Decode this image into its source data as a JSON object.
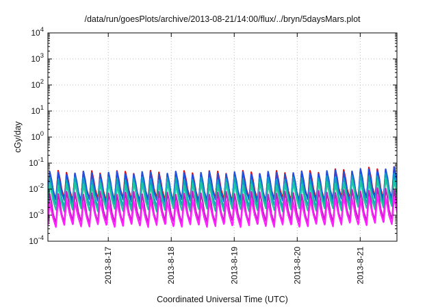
{
  "chart_data": {
    "type": "line",
    "title": "/data/run/goesPlots/archive/2013-08-21/14:00/flux/../bryn/5daysMars.plot",
    "xlabel": "Coordinated Universal Time (UTC)",
    "ylabel": "cGy/day",
    "yscale": "log",
    "ylim_exponents": [
      -4,
      4
    ],
    "y_tick_labels": [
      {
        "base": "10",
        "exp": "4"
      },
      {
        "base": "10",
        "exp": "3"
      },
      {
        "base": "10",
        "exp": "2"
      },
      {
        "base": "10",
        "exp": "1"
      },
      {
        "base": "10",
        "exp": "0"
      },
      {
        "base": "10",
        "exp": "-1"
      },
      {
        "base": "10",
        "exp": "-2"
      },
      {
        "base": "10",
        "exp": "-3"
      },
      {
        "base": "10",
        "exp": "-4"
      }
    ],
    "xlim": [
      "2013-08-16 01:00",
      "2013-08-21 14:00"
    ],
    "x_ticks": [
      "2013-8-17",
      "2013-8-18",
      "2013-8-19",
      "2013-8-20",
      "2013-8-21"
    ],
    "x_tick_dates": [
      "2013-08-17",
      "2013-08-18",
      "2013-08-19",
      "2013-08-20",
      "2013-08-21"
    ],
    "grid": true,
    "cycle_hours": 3.2,
    "series": [
      {
        "color": "#e01010",
        "peak_log": -1.35,
        "trough_log": -2.4
      },
      {
        "color": "#2050e0",
        "peak_log": -1.38,
        "trough_log": -2.45
      },
      {
        "color": "#10a0c0",
        "peak_log": -1.6,
        "trough_log": -2.65
      },
      {
        "color": "#20c8a0",
        "peak_log": -1.8,
        "trough_log": -2.8
      },
      {
        "color": "#c020c0",
        "peak_log": -2.15,
        "trough_log": -3.25
      },
      {
        "color": "#ff20ff",
        "peak_log": -2.45,
        "trough_log": -3.4
      }
    ]
  }
}
